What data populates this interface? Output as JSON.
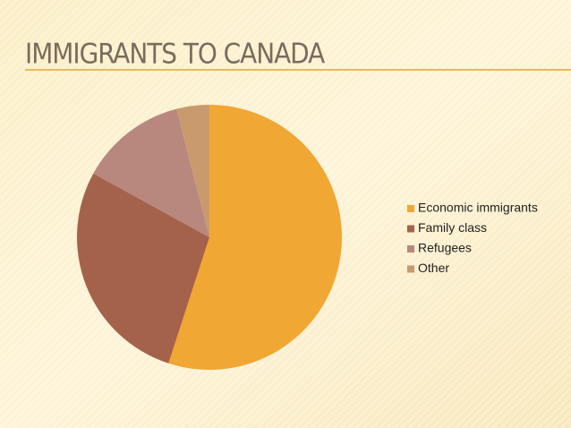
{
  "chart_data": {
    "type": "pie",
    "title": "IMMIGRANTS TO CANADA",
    "categories": [
      "Economic immigrants",
      "Family class",
      "Refugees",
      "Other"
    ],
    "values": [
      55,
      28,
      13,
      4
    ],
    "colors": [
      "#f0a733",
      "#a5624a",
      "#b8887e",
      "#c99a6e"
    ],
    "legend": "right"
  }
}
